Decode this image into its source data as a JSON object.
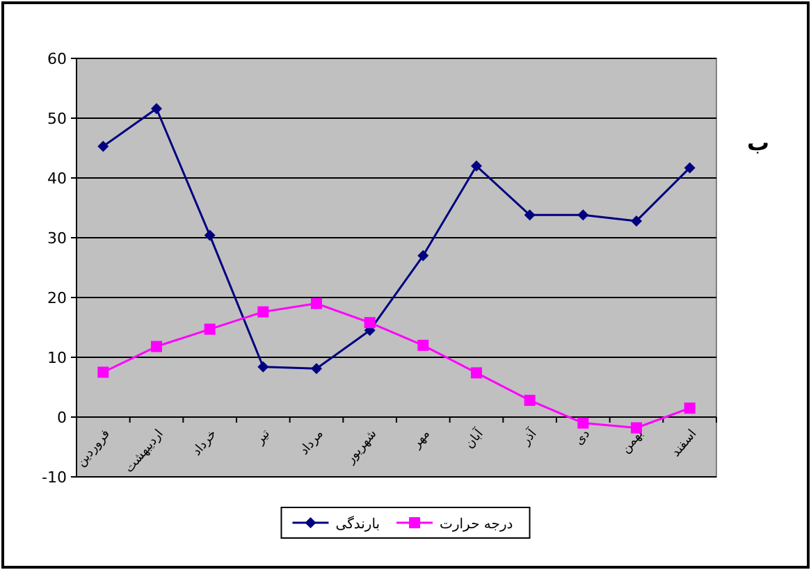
{
  "chart_data": {
    "type": "line",
    "categories": [
      "فروردین",
      "اردیبهشت",
      "خرداد",
      "تیر",
      "مرداد",
      "شهریور",
      "مهر",
      "آبان",
      "آذر",
      "دی",
      "بهمن",
      "اسفند"
    ],
    "series": [
      {
        "name": "بارندگی",
        "color": "#000080",
        "marker": "diamond",
        "values": [
          45.3,
          51.6,
          30.4,
          8.4,
          8.1,
          14.5,
          27,
          42,
          33.8,
          33.8,
          32.8,
          41.7
        ]
      },
      {
        "name": "درجه حرارت",
        "color": "#ff00ff",
        "marker": "square",
        "values": [
          7.5,
          11.8,
          14.7,
          17.6,
          19,
          15.8,
          12,
          7.4,
          2.8,
          -1,
          -1.8,
          1.5
        ]
      }
    ],
    "ylim": [
      -10,
      60
    ],
    "yticks": [
      -10,
      0,
      10,
      20,
      30,
      40,
      50,
      60
    ],
    "grid": "y",
    "legend": "bottom",
    "line_style": "solid",
    "annotations": [
      "ب"
    ]
  }
}
